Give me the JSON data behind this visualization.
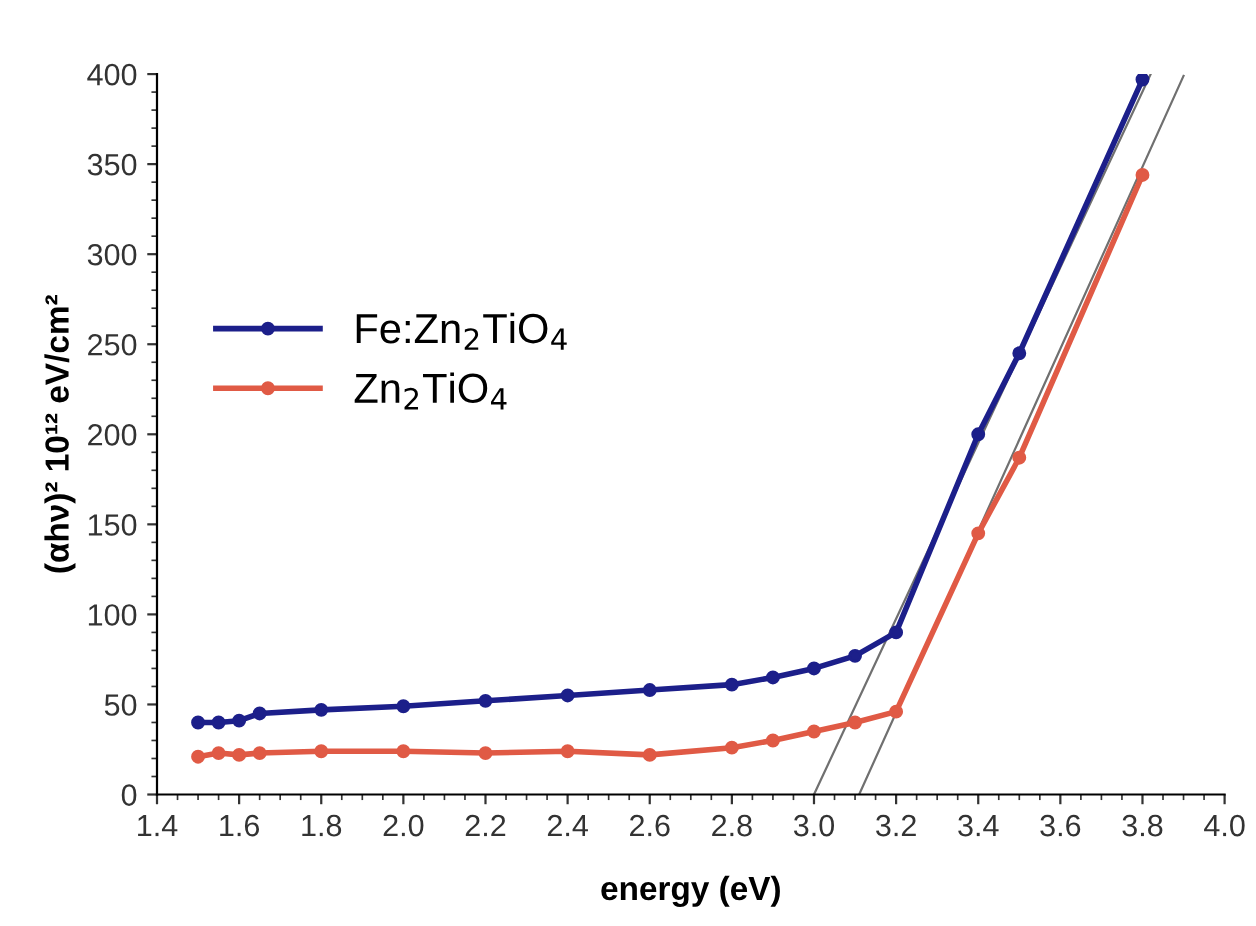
{
  "chart_data": {
    "type": "line",
    "xlabel": "energy (eV)",
    "ylabel": "(αhν)² 10¹² eV/cm²",
    "x": [
      1.5,
      1.55,
      1.6,
      1.65,
      1.8,
      2.0,
      2.2,
      2.4,
      2.6,
      2.8,
      2.9,
      3.0,
      3.1,
      3.2,
      3.4,
      3.5,
      3.8
    ],
    "series": [
      {
        "name": "Fe:Zn$_{2}$TiO$_{4}$",
        "color": "#1c1f8a",
        "values": [
          40,
          40,
          41,
          45,
          47,
          49,
          52,
          55,
          58,
          61,
          65,
          70,
          77,
          90,
          200,
          245,
          397
        ]
      },
      {
        "name": "Zn$_{2}$TiO$_{4}$",
        "color": "#e05a45",
        "values": [
          21,
          23,
          22,
          23,
          24,
          24,
          23,
          24,
          22,
          26,
          30,
          35,
          40,
          46,
          145,
          187,
          344
        ]
      },
      {
        "type": "line",
        "color": "#707070",
        "x": [
          3.0,
          3.82
        ],
        "values": [
          0,
          400
        ],
        "marker": "none"
      },
      {
        "type": "line",
        "color": "#707070",
        "x": [
          3.11,
          3.9
        ],
        "values": [
          0,
          399
        ],
        "marker": "none"
      }
    ],
    "xlim": [
      1.4,
      4.0
    ],
    "xticks": [
      1.4,
      1.6,
      1.8,
      {
        "value": 2,
        "label": "2.0"
      },
      2.2,
      2.4,
      2.6,
      2.8,
      {
        "value": 3,
        "label": "3.0"
      },
      3.2,
      3.4,
      3.6,
      3.8,
      {
        "value": 4,
        "label": "4.0"
      }
    ],
    "ylim": [
      0,
      400
    ],
    "yticks": [
      0,
      50,
      100,
      150,
      200,
      250,
      300,
      350,
      400
    ],
    "marker": "circle",
    "line_style": "solid",
    "grid": false,
    "legend": "center left"
  }
}
